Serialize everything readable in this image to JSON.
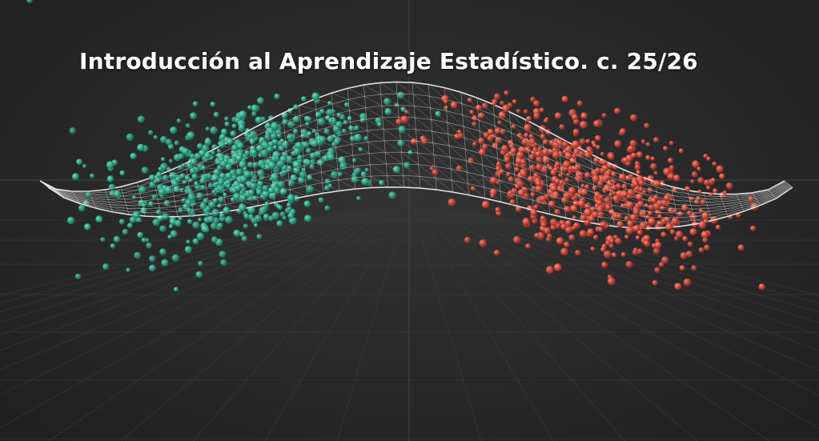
{
  "title": "Introducción al Aprendizaje Estadístico. c. 25/26",
  "colors": {
    "background": "#262626",
    "class_a": "#2fa88a",
    "class_b": "#d4483a",
    "surface": "#e8e8e8",
    "grid": "#3a3f3f"
  }
}
